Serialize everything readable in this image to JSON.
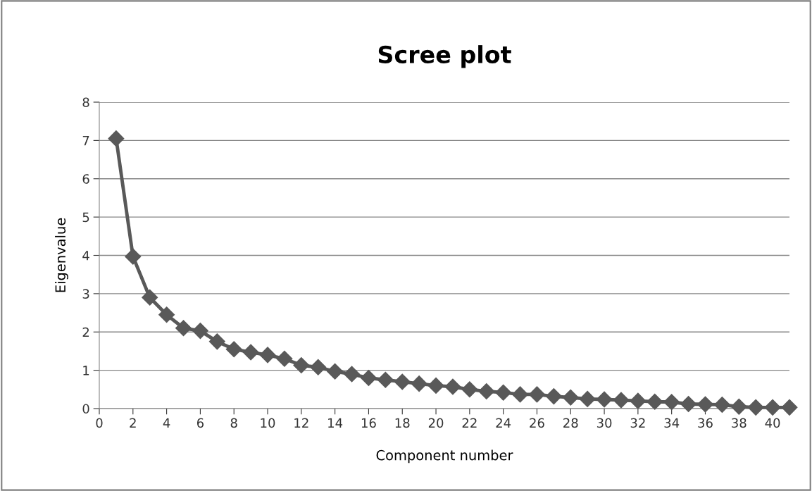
{
  "chart_data": {
    "type": "line",
    "title": "Scree plot",
    "xlabel": "Component number",
    "ylabel": "Eigenvalue",
    "x": [
      1,
      2,
      3,
      4,
      5,
      6,
      7,
      8,
      9,
      10,
      11,
      12,
      13,
      14,
      15,
      16,
      17,
      18,
      19,
      20,
      21,
      22,
      23,
      24,
      25,
      26,
      27,
      28,
      29,
      30,
      31,
      32,
      33,
      34,
      35,
      36,
      37,
      38,
      39,
      40,
      41
    ],
    "series": [
      {
        "color": "#595959",
        "values": [
          7.05,
          3.97,
          2.9,
          2.45,
          2.1,
          2.03,
          1.75,
          1.55,
          1.47,
          1.4,
          1.3,
          1.13,
          1.08,
          0.97,
          0.9,
          0.8,
          0.75,
          0.7,
          0.65,
          0.6,
          0.57,
          0.5,
          0.45,
          0.42,
          0.37,
          0.37,
          0.32,
          0.29,
          0.25,
          0.24,
          0.22,
          0.2,
          0.18,
          0.17,
          0.12,
          0.11,
          0.1,
          0.05,
          0.03,
          0.03,
          0.03
        ]
      }
    ],
    "xlim": [
      0,
      41
    ],
    "xticks": [
      0,
      2,
      4,
      6,
      8,
      10,
      12,
      14,
      16,
      18,
      20,
      22,
      24,
      26,
      28,
      30,
      32,
      34,
      36,
      38,
      40
    ],
    "ylim": [
      0,
      8
    ],
    "yticks": [
      0,
      1,
      2,
      3,
      4,
      5,
      6,
      7,
      8
    ],
    "grid": "y",
    "marker": "diamond",
    "line_style": "solid",
    "legend": false
  }
}
